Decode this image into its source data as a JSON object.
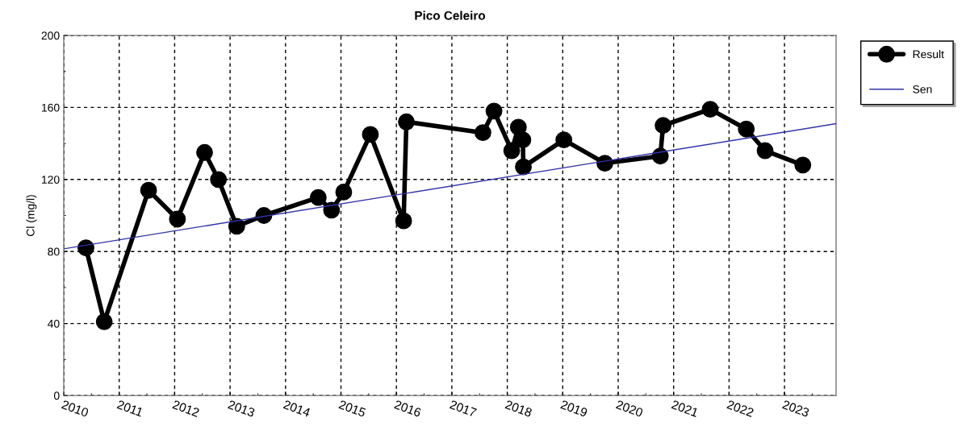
{
  "chart_data": {
    "type": "line",
    "title": "Pico Celeiro",
    "ylabel": "Cl (mg/l)",
    "xlim": [
      2010,
      2023.93
    ],
    "xticks": [
      2010,
      2011,
      2012,
      2013,
      2014,
      2015,
      2016,
      2017,
      2018,
      2019,
      2020,
      2021,
      2022,
      2023
    ],
    "ylim": [
      0,
      200
    ],
    "yticks": [
      0,
      40,
      80,
      120,
      160,
      200
    ],
    "grid": true,
    "legend": "top right",
    "series": [
      {
        "name": "Result",
        "color": "#000000",
        "marker": "circle",
        "line_style": "solid",
        "x": [
          2010.4,
          2010.73,
          2011.53,
          2012.05,
          2012.54,
          2012.79,
          2013.12,
          2013.61,
          2014.59,
          2014.83,
          2015.05,
          2015.53,
          2016.13,
          2016.18,
          2017.56,
          2017.76,
          2018.08,
          2018.2,
          2018.28,
          2018.29,
          2019.02,
          2019.76,
          2020.76,
          2020.81,
          2021.66,
          2022.31,
          2022.65,
          2023.33
        ],
        "values": [
          82,
          41,
          114,
          98,
          135,
          120,
          94,
          100,
          110,
          103,
          113,
          145,
          97,
          152,
          146,
          158,
          136,
          149,
          142,
          127,
          142,
          129,
          133,
          150,
          159,
          148,
          136,
          128
        ]
      },
      {
        "name": "Sen",
        "color": "#3333aa",
        "marker": "none",
        "line_style": "solid",
        "x": [
          2010,
          2023.93
        ],
        "values": [
          81.5,
          151
        ]
      }
    ]
  }
}
